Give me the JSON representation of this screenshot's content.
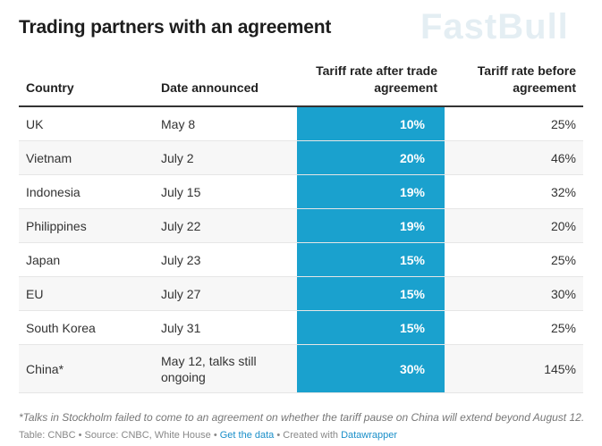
{
  "title": "Trading partners with an agreement",
  "chart_data": {
    "type": "table",
    "columns": [
      "Country",
      "Date announced",
      "Tariff rate after trade agreement",
      "Tariff rate before agreement"
    ],
    "rows": [
      [
        "UK",
        "May 8",
        "10%",
        "25%"
      ],
      [
        "Vietnam",
        "July 2",
        "20%",
        "46%"
      ],
      [
        "Indonesia",
        "July 15",
        "19%",
        "32%"
      ],
      [
        "Philippines",
        "July 22",
        "19%",
        "20%"
      ],
      [
        "Japan",
        "July 23",
        "15%",
        "25%"
      ],
      [
        "EU",
        "July 27",
        "15%",
        "30%"
      ],
      [
        "South Korea",
        "July 31",
        "15%",
        "25%"
      ],
      [
        "China*",
        "May 12, talks still ongoing",
        "30%",
        "145%"
      ]
    ],
    "highlight_column_color": "#1aa1ce"
  },
  "footer": {
    "note": "*Talks in Stockholm failed to come to an agreement on whether the tariff pause on China will extend beyond August 12.",
    "credit": "Table: CNBC • Source: CNBC, White House • ",
    "get_data": "Get the data",
    "sep": " • Created with ",
    "datawrapper": "Datawrapper"
  },
  "watermark": "FastBull"
}
